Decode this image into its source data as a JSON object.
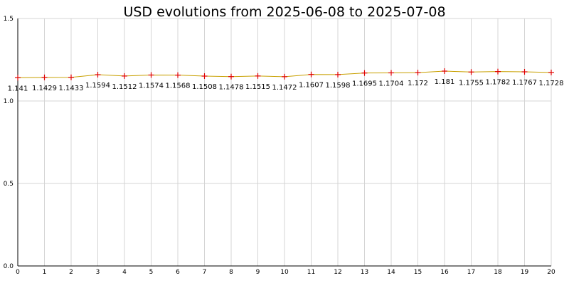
{
  "chart_data": {
    "type": "line",
    "title": "USD evolutions from 2025-06-08 to 2025-07-08",
    "xlabel": "",
    "ylabel": "",
    "x": [
      0,
      1,
      2,
      3,
      4,
      5,
      6,
      7,
      8,
      9,
      10,
      11,
      12,
      13,
      14,
      15,
      16,
      17,
      18,
      19,
      20
    ],
    "values": [
      1.141,
      1.1429,
      1.1433,
      1.1594,
      1.1512,
      1.1574,
      1.1568,
      1.1508,
      1.1478,
      1.1515,
      1.1472,
      1.1607,
      1.1598,
      1.1695,
      1.1704,
      1.172,
      1.181,
      1.1755,
      1.1782,
      1.1767,
      1.1728
    ],
    "value_labels": [
      "1.141",
      "1.1429",
      "1.1433",
      "1.1594",
      "1.1512",
      "1.1574",
      "1.1568",
      "1.1508",
      "1.1478",
      "1.1515",
      "1.1472",
      "1.1607",
      "1.1598",
      "1.1695",
      "1.1704",
      "1.172",
      "1.181",
      "1.1755",
      "1.1782",
      "1.1767",
      "1.1728"
    ],
    "xlim": [
      0,
      20
    ],
    "ylim": [
      0,
      1.5
    ],
    "x_ticks": [
      "0",
      "1",
      "2",
      "3",
      "4",
      "5",
      "6",
      "7",
      "8",
      "9",
      "10",
      "11",
      "12",
      "13",
      "14",
      "15",
      "16",
      "17",
      "18",
      "19",
      "20"
    ],
    "y_ticks": [
      {
        "value": 0,
        "label": "0.0"
      },
      {
        "value": 0.5,
        "label": "0.5"
      },
      {
        "value": 1.0,
        "label": "1.0"
      },
      {
        "value": 1.5,
        "label": "1.5"
      }
    ],
    "grid": true,
    "line_color": "#c8a000",
    "marker_color": "#e00000",
    "marker": "plus"
  }
}
